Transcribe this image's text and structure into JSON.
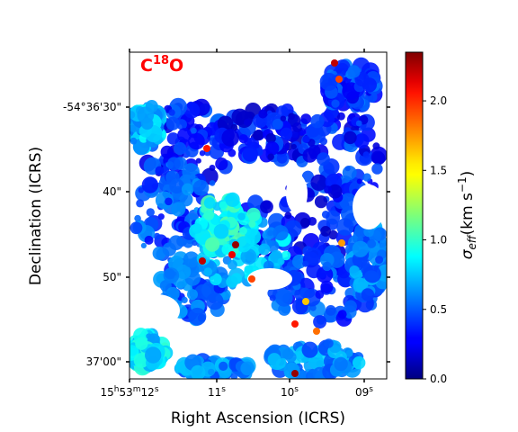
{
  "chart_data": {
    "type": "heatmap",
    "panel_label": {
      "base": "C",
      "sup": "18",
      "tail": "O",
      "color": "#ff0000"
    },
    "xlabel": "Right Ascension (ICRS)",
    "ylabel": "Declination (ICRS)",
    "x_ticks": [
      {
        "label_parts": [
          [
            "15",
            ""
          ],
          [
            "h",
            "sup"
          ],
          [
            "53",
            ""
          ],
          [
            "m",
            "sup"
          ],
          [
            "12",
            ""
          ],
          [
            "s",
            "sup"
          ]
        ]
      },
      {
        "label_parts": [
          [
            "11",
            ""
          ],
          [
            "s",
            "sup"
          ]
        ]
      },
      {
        "label_parts": [
          [
            "10",
            ""
          ],
          [
            "s",
            "sup"
          ]
        ]
      },
      {
        "label_parts": [
          [
            "09",
            ""
          ],
          [
            "s",
            "sup"
          ]
        ]
      }
    ],
    "y_ticks": [
      {
        "label": "-54°36'30\""
      },
      {
        "label": "40\""
      },
      {
        "label": "50\""
      },
      {
        "label": "37'00\""
      }
    ],
    "colorbar": {
      "label_symbol": "σ",
      "label_sub": "eff",
      "label_unit": "(km s",
      "label_unit_sup": "−1",
      "label_close": ")",
      "colormap": "jet",
      "range": [
        0.0,
        2.35
      ],
      "ticks": [
        0.0,
        0.5,
        1.0,
        1.5,
        2.0
      ],
      "tick_labels": [
        "0.0",
        "0.5",
        "1.0",
        "1.5",
        "2.0"
      ]
    },
    "background_color": "#ffffff",
    "hotspot_color": "#8b0000"
  }
}
